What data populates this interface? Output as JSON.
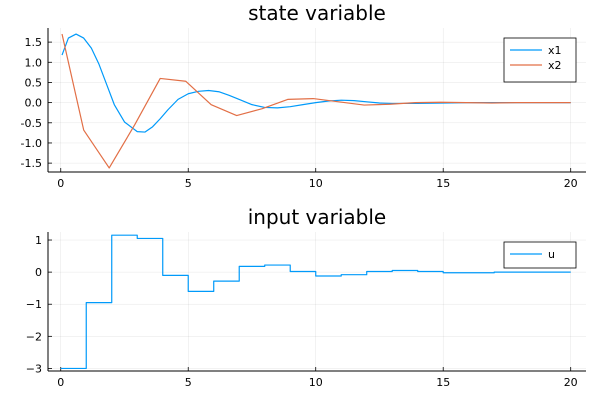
{
  "chart_data": [
    {
      "type": "line",
      "title": "state variable",
      "xlabel": "",
      "ylabel": "",
      "xlim": [
        -0.5,
        20.6
      ],
      "ylim": [
        -1.72,
        1.85
      ],
      "xticks": [
        0,
        5,
        10,
        15,
        20
      ],
      "yticks": [
        1.5,
        1.0,
        0.5,
        0.0,
        -0.5,
        -1.0,
        -1.5
      ],
      "ytick_labels": [
        "1.5",
        "1.0",
        "0.5",
        "0.0",
        "-0.5",
        "-1.0",
        "-1.5"
      ],
      "grid": true,
      "legend_position": "top-right",
      "series": [
        {
          "name": "x1",
          "color": "#009AFA",
          "x": [
            0.05,
            0.3,
            0.6,
            0.9,
            1.2,
            1.5,
            1.8,
            2.1,
            2.5,
            3.0,
            3.3,
            3.6,
            3.9,
            4.2,
            4.6,
            5.0,
            5.4,
            5.8,
            6.2,
            6.6,
            7.0,
            7.5,
            8.0,
            8.5,
            9.0,
            9.5,
            10.0,
            10.5,
            11.0,
            11.5,
            12.0,
            12.5,
            13.0,
            14.0,
            15.0,
            16.0,
            17.0,
            18.0,
            19.0,
            20.0
          ],
          "y": [
            1.18,
            1.6,
            1.7,
            1.6,
            1.35,
            0.95,
            0.45,
            -0.05,
            -0.48,
            -0.72,
            -0.73,
            -0.6,
            -0.4,
            -0.18,
            0.08,
            0.22,
            0.28,
            0.3,
            0.27,
            0.18,
            0.08,
            -0.05,
            -0.12,
            -0.13,
            -0.1,
            -0.05,
            0.0,
            0.04,
            0.06,
            0.05,
            0.02,
            -0.01,
            -0.02,
            -0.02,
            -0.01,
            0.0,
            0.0,
            0.0,
            0.0,
            0.0
          ]
        },
        {
          "name": "x2",
          "color": "#E26F46",
          "x": [
            0.05,
            0.9,
            1.9,
            2.9,
            3.9,
            4.9,
            5.9,
            6.9,
            7.9,
            8.9,
            9.9,
            10.9,
            11.9,
            12.9,
            13.9,
            14.9,
            15.9,
            16.9,
            17.9,
            18.9,
            20.0
          ],
          "y": [
            1.7,
            -0.68,
            -1.62,
            -0.55,
            0.6,
            0.53,
            -0.05,
            -0.32,
            -0.15,
            0.08,
            0.1,
            0.02,
            -0.06,
            -0.04,
            0.0,
            0.01,
            0.0,
            -0.01,
            0.0,
            0.0,
            0.0
          ]
        }
      ]
    },
    {
      "type": "line",
      "title": "input variable",
      "xlabel": "",
      "ylabel": "",
      "xlim": [
        -0.5,
        20.6
      ],
      "ylim": [
        -3.08,
        1.25
      ],
      "xticks": [
        0,
        5,
        10,
        15,
        20
      ],
      "yticks": [
        1,
        0,
        -1,
        -2,
        -3
      ],
      "ytick_labels": [
        "1",
        "0",
        "−1",
        "−2",
        "−3"
      ],
      "grid": true,
      "legend_position": "top-right",
      "series": [
        {
          "name": "u",
          "color": "#009AFA",
          "step": "post",
          "x": [
            0,
            1,
            2,
            3,
            4,
            5,
            6,
            7,
            8,
            9,
            10,
            11,
            12,
            13,
            14,
            15,
            16,
            17,
            18,
            19,
            20
          ],
          "y": [
            -3.0,
            -0.95,
            1.15,
            1.05,
            -0.1,
            -0.6,
            -0.28,
            0.18,
            0.22,
            0.02,
            -0.12,
            -0.08,
            0.02,
            0.05,
            0.02,
            -0.02,
            -0.02,
            0.0,
            0.0,
            0.0,
            0.0
          ]
        }
      ]
    }
  ]
}
